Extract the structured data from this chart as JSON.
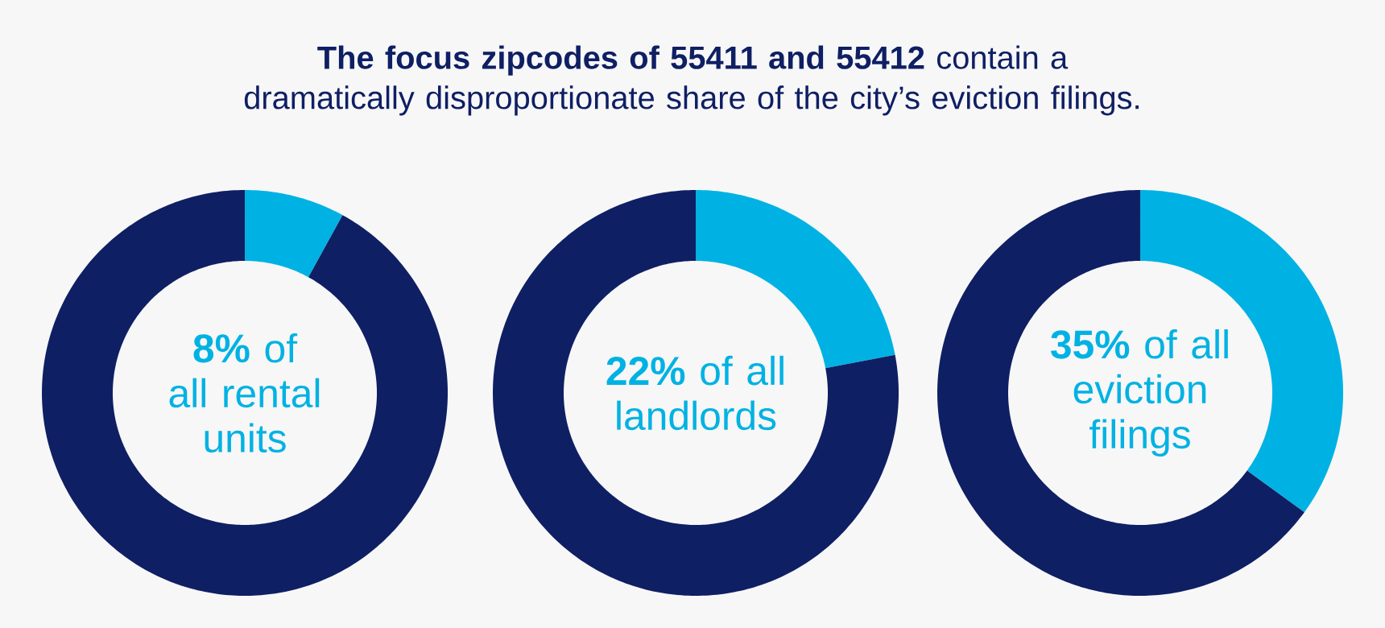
{
  "chart_data": [
    {
      "type": "donut",
      "title": "**The focus zipcodes of 55411 and 55412** contain a dramatically disproportionate share of the city’s eviction filings.",
      "categories": [
        null,
        null
      ],
      "values": [
        8,
        92
      ],
      "colors": [
        "#00b2e3",
        "#0f1f64"
      ],
      "annotations": [
        "**8%** of all rental units"
      ]
    },
    {
      "type": "donut",
      "categories": [
        null,
        null
      ],
      "values": [
        22,
        78
      ],
      "colors": [
        "#00b2e3",
        "#0f1f64"
      ],
      "annotations": [
        "**22%** of all landlords"
      ]
    },
    {
      "type": "donut",
      "categories": [
        null,
        null
      ],
      "values": [
        35,
        65
      ],
      "colors": [
        "#00b2e3",
        "#0f1f64"
      ],
      "annotations": [
        "**35%** of all eviction filings"
      ]
    }
  ]
}
